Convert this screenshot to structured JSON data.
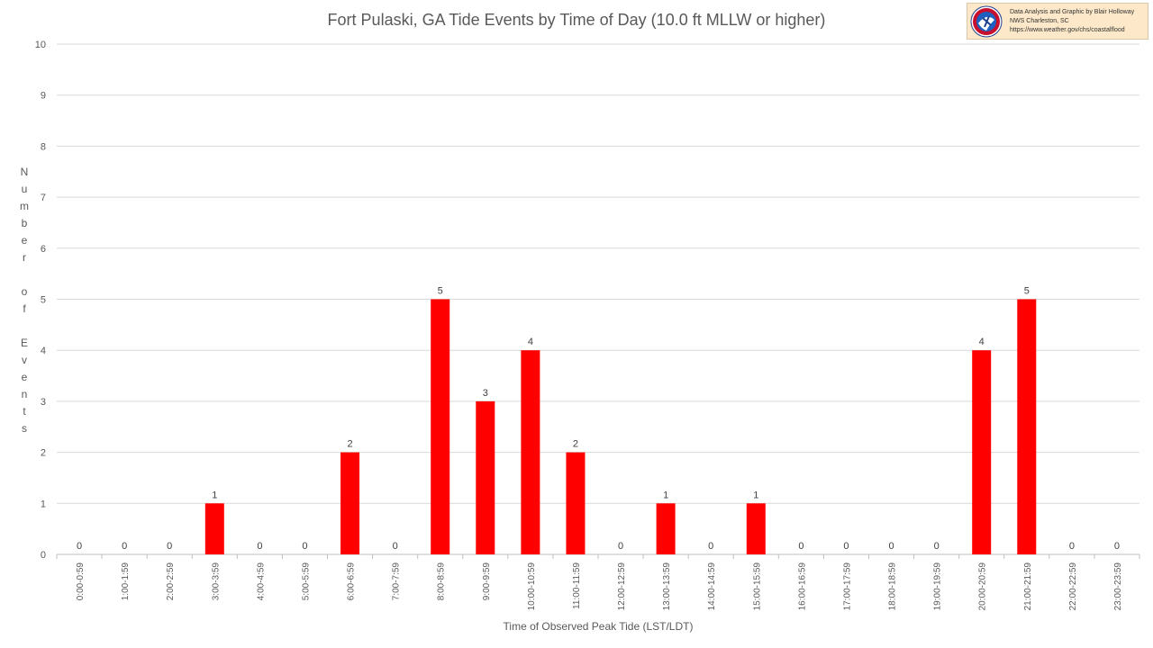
{
  "credit": {
    "line1": "Data Analysis and Graphic by Blair Holloway",
    "line2": "NWS Charleston, SC",
    "line3": "https://www.weather.gov/chs/coastalflood"
  },
  "chart_data": {
    "type": "bar",
    "title": "Fort Pulaski, GA Tide Events by Time of Day (10.0 ft MLLW or higher)",
    "xlabel": "Time of Observed Peak Tide (LST/LDT)",
    "ylabel": "Number of Events",
    "ylim": [
      0,
      10
    ],
    "yticks": [
      0,
      1,
      2,
      3,
      4,
      5,
      6,
      7,
      8,
      9,
      10
    ],
    "grid": true,
    "bar_color": "#ff0000",
    "categories": [
      "0:00-0:59",
      "1:00-1:59",
      "2:00-2:59",
      "3:00-3:59",
      "4:00-4:59",
      "5:00-5:59",
      "6:00-6:59",
      "7:00-7:59",
      "8:00-8:59",
      "9:00-9:59",
      "10:00-10:59",
      "11:00-11:59",
      "12:00-12:59",
      "13:00-13:59",
      "14:00-14:59",
      "15:00-15:59",
      "16:00-16:59",
      "17:00-17:59",
      "18:00-18:59",
      "19:00-19:59",
      "20:00-20:59",
      "21:00-21:59",
      "22:00-22:59",
      "23:00-23:59"
    ],
    "values": [
      0,
      0,
      0,
      1,
      0,
      0,
      2,
      0,
      5,
      3,
      4,
      2,
      0,
      1,
      0,
      1,
      0,
      0,
      0,
      0,
      4,
      5,
      0,
      0
    ]
  }
}
